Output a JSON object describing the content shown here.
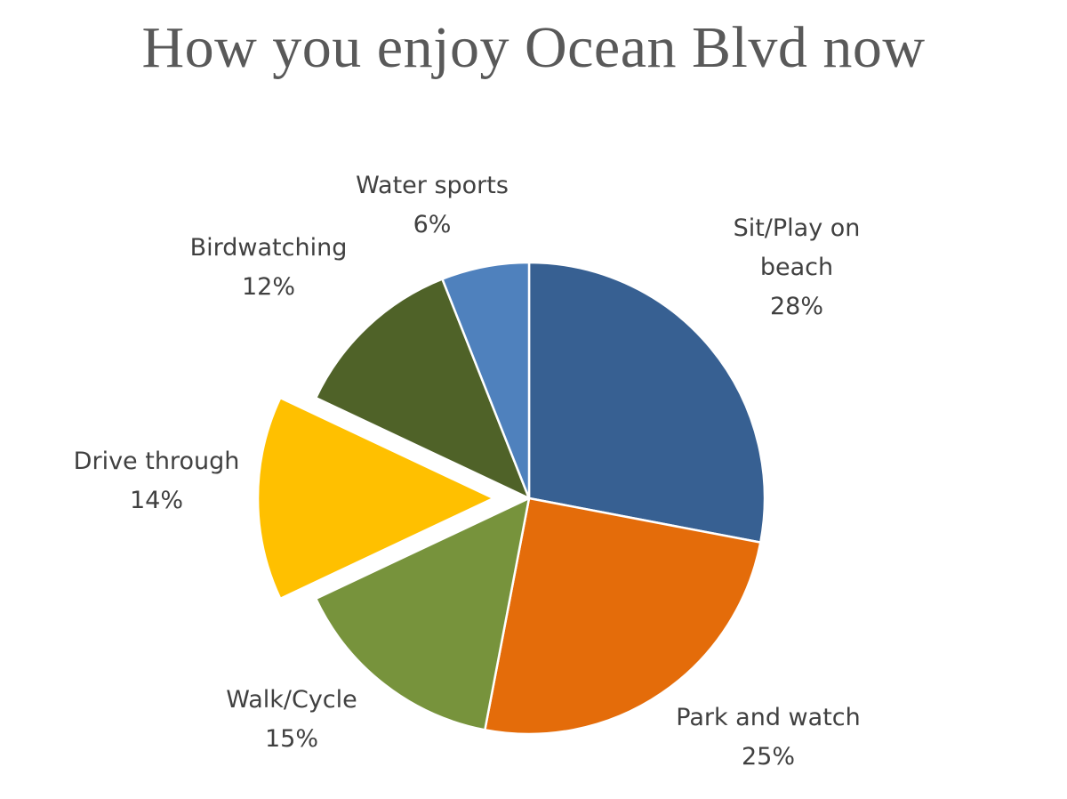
{
  "chart_data": {
    "type": "pie",
    "title": "How you enjoy Ocean Blvd now",
    "slices": [
      {
        "label": [
          "Sit/Play on",
          "beach"
        ],
        "percent_label": "28%",
        "value": 28,
        "color": "#376092",
        "exploded": false
      },
      {
        "label": [
          "Park and watch"
        ],
        "percent_label": "25%",
        "value": 25,
        "color": "#E46C0A",
        "exploded": false
      },
      {
        "label": [
          "Walk/Cycle"
        ],
        "percent_label": "15%",
        "value": 15,
        "color": "#77933C",
        "exploded": false
      },
      {
        "label": [
          "Drive through"
        ],
        "percent_label": "14%",
        "value": 14,
        "color": "#FFC000",
        "exploded": true
      },
      {
        "label": [
          "Birdwatching"
        ],
        "percent_label": "12%",
        "value": 12,
        "color": "#4F6228",
        "exploded": false
      },
      {
        "label": [
          "Water sports"
        ],
        "percent_label": "6%",
        "value": 6,
        "color": "#4F81BD",
        "exploded": false
      }
    ]
  }
}
